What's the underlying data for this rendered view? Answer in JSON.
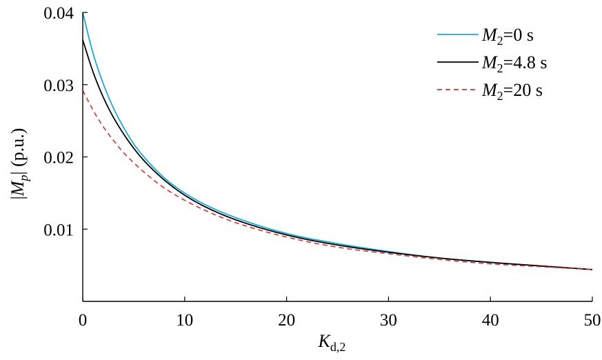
{
  "chart_data": {
    "type": "line",
    "x_axis": {
      "label": "K",
      "label_subscript": "d,2",
      "range": [
        0,
        50
      ],
      "ticks": [
        0,
        10,
        20,
        30,
        40,
        50
      ],
      "tick_labels": [
        "0",
        "10",
        "20",
        "30",
        "40",
        "50"
      ]
    },
    "y_axis": {
      "label_prefix": "|M",
      "label_subscript": "p",
      "label_suffix": "| (p.u.)",
      "range": [
        0,
        0.04
      ],
      "ticks": [
        0.01,
        0.02,
        0.03,
        0.04
      ],
      "tick_labels": [
        "0.01",
        "0.02",
        "0.03",
        "0.04"
      ]
    },
    "grid": false,
    "legend_position": "top-right",
    "x": [
      0,
      1,
      2,
      3,
      4,
      5,
      6,
      8,
      10,
      12,
      15,
      20,
      25,
      30,
      35,
      40,
      45,
      50
    ],
    "series": [
      {
        "name": "M2=0 s",
        "legend_main": "M",
        "legend_sub": "2",
        "legend_rest": "=0 s",
        "color": "#1ba8d8",
        "dash": "solid",
        "values": [
          0.04,
          0.0344,
          0.0302,
          0.0268,
          0.0241,
          0.0218,
          0.02,
          0.0171,
          0.015,
          0.0134,
          0.0116,
          0.0094,
          0.008,
          0.0069,
          0.006,
          0.0054,
          0.0049,
          0.0044
        ]
      },
      {
        "name": "M2=4.8 s",
        "legend_main": "M",
        "legend_sub": "2",
        "legend_rest": "=4.8 s",
        "color": "#000000",
        "dash": "solid",
        "values": [
          0.0362,
          0.0318,
          0.0283,
          0.0255,
          0.0232,
          0.0212,
          0.0195,
          0.0168,
          0.0147,
          0.0131,
          0.0113,
          0.0092,
          0.0078,
          0.0068,
          0.006,
          0.0054,
          0.0049,
          0.0044
        ]
      },
      {
        "name": "M2=20 s",
        "legend_main": "M",
        "legend_sub": "2",
        "legend_rest": "=20 s",
        "color": "#cc3333",
        "dash": "dashed",
        "values": [
          0.0292,
          0.0265,
          0.0242,
          0.0223,
          0.0206,
          0.0192,
          0.0179,
          0.0157,
          0.014,
          0.0126,
          0.0109,
          0.0089,
          0.0075,
          0.0066,
          0.0058,
          0.0052,
          0.0048,
          0.0044
        ]
      }
    ]
  }
}
